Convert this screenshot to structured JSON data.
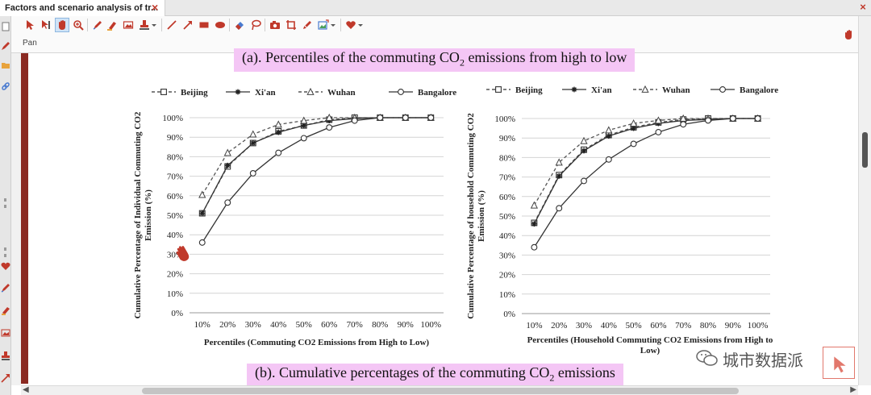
{
  "window": {
    "tab_title": "Factors and scenario analysis of tr..."
  },
  "toolbar": {
    "mode_label": "Pan",
    "tools": [
      "select-arrow-icon",
      "select-text-icon",
      "pan-hand-icon",
      "zoom-icon",
      "pen-icon",
      "highlighter-icon",
      "image-icon",
      "stamp-icon",
      "dropdown-icon",
      "line-icon",
      "arrow-icon",
      "rectangle-icon",
      "ellipse-icon",
      "eraser-icon",
      "lasso-icon",
      "camera-icon",
      "crop-icon",
      "marker-icon",
      "insert-image-icon",
      "dropdown-icon",
      "heart-icon",
      "dropdown-icon"
    ],
    "accent_color": "#c0392b"
  },
  "captions": {
    "a_prefix": "(a). Percentiles of the commuting CO",
    "a_sub": "2",
    "a_suffix": " emissions from high to low",
    "b_prefix": "(b). Cumulative percentages of the commuting CO",
    "b_sub": "2",
    "b_suffix": " emissions"
  },
  "watermark": {
    "text": "城市数据派"
  },
  "chart_data": [
    {
      "type": "line",
      "categories": [
        "10%",
        "20%",
        "30%",
        "40%",
        "50%",
        "60%",
        "70%",
        "80%",
        "90%",
        "100%"
      ],
      "series": [
        {
          "name": "Beijing",
          "marker": "square",
          "dash": true,
          "values": [
            51,
            75,
            87,
            93,
            96,
            99,
            100,
            100,
            100,
            100
          ]
        },
        {
          "name": "Xi'an",
          "marker": "star",
          "dash": false,
          "values": [
            51,
            75.5,
            87,
            92.5,
            96,
            98.5,
            99.5,
            100,
            100,
            100
          ]
        },
        {
          "name": "Wuhan",
          "marker": "triangle",
          "dash": true,
          "values": [
            60.5,
            82,
            91.5,
            96.5,
            98.5,
            100,
            100,
            100,
            100,
            100
          ]
        },
        {
          "name": "Bangalore",
          "marker": "circle",
          "dash": false,
          "values": [
            36,
            56.5,
            71.5,
            82,
            89.5,
            95,
            98.5,
            100,
            100,
            100
          ]
        }
      ],
      "yticks": [
        "0%",
        "10%",
        "20%",
        "30%",
        "40%",
        "50%",
        "60%",
        "70%",
        "80%",
        "90%",
        "100%"
      ],
      "ylim": [
        0,
        100
      ],
      "xlabel": "Percentiles (Commuting CO2 Emissions from High to Low)",
      "ylabel_line1": "Cumulative Percentage of Individual Commuting CO2",
      "ylabel_line2": "Emission (%)",
      "grid": true,
      "legend_position": "top"
    },
    {
      "type": "line",
      "categories": [
        "10%",
        "20%",
        "30%",
        "40%",
        "50%",
        "60%",
        "70%",
        "80%",
        "90%",
        "100%"
      ],
      "series": [
        {
          "name": "Beijing",
          "marker": "square",
          "dash": true,
          "values": [
            46.5,
            71,
            84,
            91.5,
            95.5,
            98,
            99.5,
            100,
            100,
            100
          ]
        },
        {
          "name": "Xi'an",
          "marker": "star",
          "dash": false,
          "values": [
            46,
            70.5,
            83.5,
            91,
            95,
            97.5,
            99,
            99.5,
            100,
            100
          ]
        },
        {
          "name": "Wuhan",
          "marker": "triangle",
          "dash": true,
          "values": [
            55.5,
            77.5,
            88.5,
            94,
            97.5,
            99,
            100,
            100,
            100,
            100
          ]
        },
        {
          "name": "Bangalore",
          "marker": "circle",
          "dash": false,
          "values": [
            34,
            54,
            68,
            79,
            87,
            93,
            97,
            99,
            100,
            100
          ]
        }
      ],
      "yticks": [
        "0%",
        "10%",
        "20%",
        "30%",
        "40%",
        "50%",
        "60%",
        "70%",
        "80%",
        "90%",
        "100%"
      ],
      "ylim": [
        0,
        100
      ],
      "xlabel_line1": "Percentiles (Household Commuting CO2 Emissions from High to",
      "xlabel_line2": "Low)",
      "ylabel_line1": "Cumulative Percentage of household Commuting CO2",
      "ylabel_line2": "Emission (%)",
      "grid": true,
      "legend_position": "top"
    }
  ]
}
